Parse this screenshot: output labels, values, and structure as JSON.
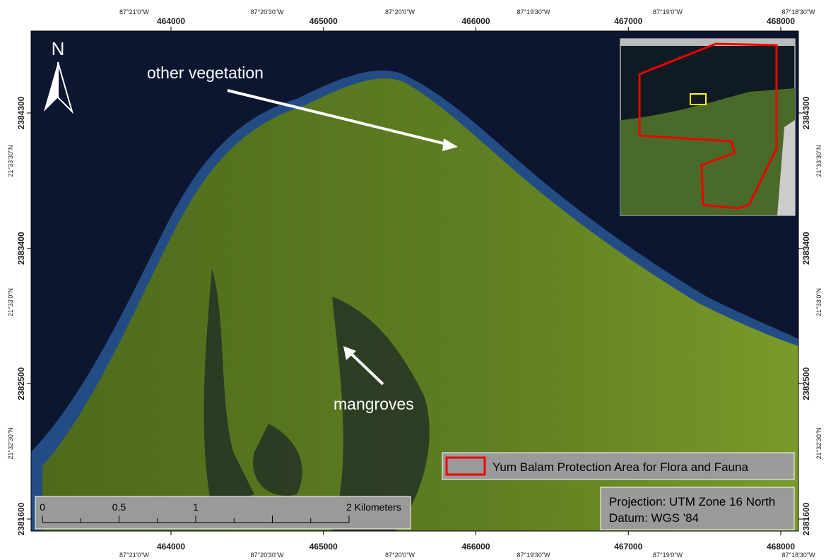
{
  "map": {
    "north_arrow": "N",
    "eastings": [
      464000,
      465000,
      466000,
      467000,
      468000
    ],
    "northings": [
      2384300,
      2383400,
      2382500,
      2381600
    ],
    "longitudes": [
      "87°21'0\"W",
      "87°20'30\"W",
      "87°20'0\"W",
      "87°19'30\"W",
      "87°19'0\"W",
      "87°18'30\"W"
    ],
    "latitudes": [
      "21°33'30\"N",
      "21°33'0\"N",
      "21°32'30\"N"
    ],
    "annotations": [
      "other vegetation",
      "mangroves"
    ],
    "legend": "Yum Balam Protection Area for Flora and Fauna",
    "scale_bar": {
      "labels": [
        "0",
        "0.5",
        "1",
        "2 Kilometers"
      ]
    },
    "projection": "Projection: UTM Zone 16 North",
    "datum": "Datum: WGS '84"
  }
}
